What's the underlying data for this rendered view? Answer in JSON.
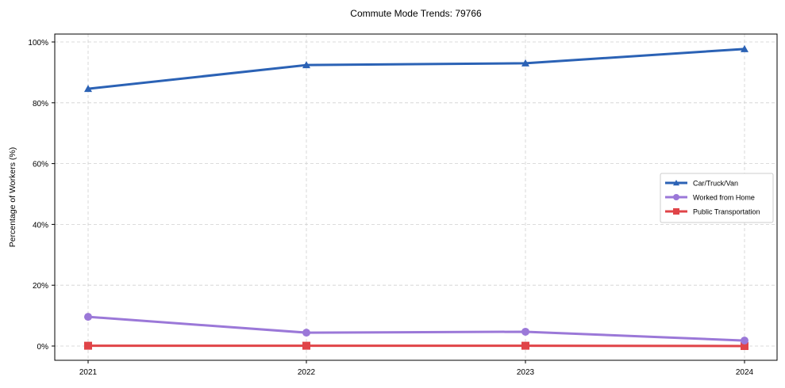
{
  "chart_data": {
    "type": "line",
    "title": "Commute Mode Trends: 79766",
    "xlabel": "",
    "ylabel": "Percentage of Workers (%)",
    "categories": [
      "2021",
      "2022",
      "2023",
      "2024"
    ],
    "ylim": [
      -5,
      103
    ],
    "yticks": [
      "0%",
      "20%",
      "40%",
      "60%",
      "80%",
      "100%"
    ],
    "ytick_values": [
      0,
      20,
      40,
      60,
      80,
      100
    ],
    "grid": true,
    "legend_position": "center right",
    "series": [
      {
        "name": "Car/Truck/Van",
        "values": [
          84.6,
          92.4,
          93.0,
          97.7
        ],
        "color": "#2b62b5",
        "marker": "triangle"
      },
      {
        "name": "Worked from Home",
        "values": [
          9.6,
          4.4,
          4.7,
          1.8
        ],
        "color": "#9b78d8",
        "marker": "circle"
      },
      {
        "name": "Public Transportation",
        "values": [
          0.1,
          0.1,
          0.1,
          0.0
        ],
        "color": "#e04448",
        "marker": "square"
      }
    ]
  }
}
